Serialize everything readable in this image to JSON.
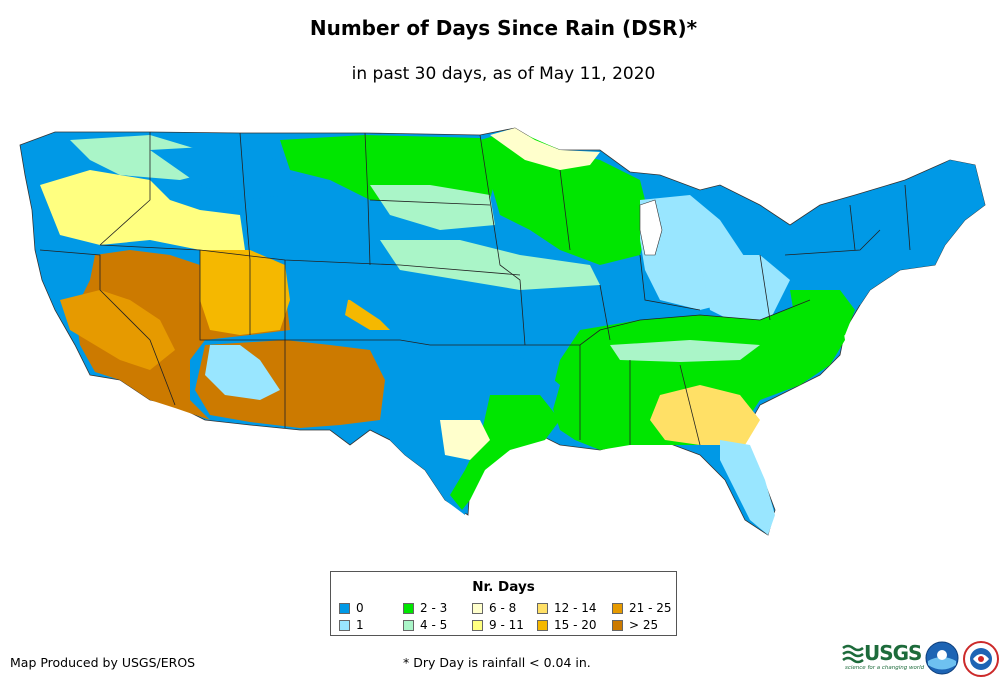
{
  "title": "Number of Days Since Rain (DSR)*",
  "subtitle": "in past 30 days, as of May 11, 2020",
  "legend": {
    "title": "Nr. Days",
    "items": [
      {
        "label": "0",
        "color": "#0099e6"
      },
      {
        "label": "1",
        "color": "#99e6ff"
      },
      {
        "label": "2 - 3",
        "color": "#00e600"
      },
      {
        "label": "4 - 5",
        "color": "#aaf5c8"
      },
      {
        "label": "6 - 8",
        "color": "#ffffcc"
      },
      {
        "label": "9 - 11",
        "color": "#ffff80"
      },
      {
        "label": "12 - 14",
        "color": "#ffe066"
      },
      {
        "label": "15 - 20",
        "color": "#f5b800"
      },
      {
        "label": "21 - 25",
        "color": "#e69a00"
      },
      {
        "label": "> 25",
        "color": "#cc7a00"
      }
    ]
  },
  "footer": {
    "credit": "Map Produced by USGS/EROS",
    "footnote": "* Dry Day is rainfall < 0.04 in.",
    "usgs_logo_text": "USGS",
    "usgs_tagline": "science for a changing world"
  },
  "logos": [
    "usgs-logo",
    "noaa-logo",
    "nws-logo"
  ]
}
